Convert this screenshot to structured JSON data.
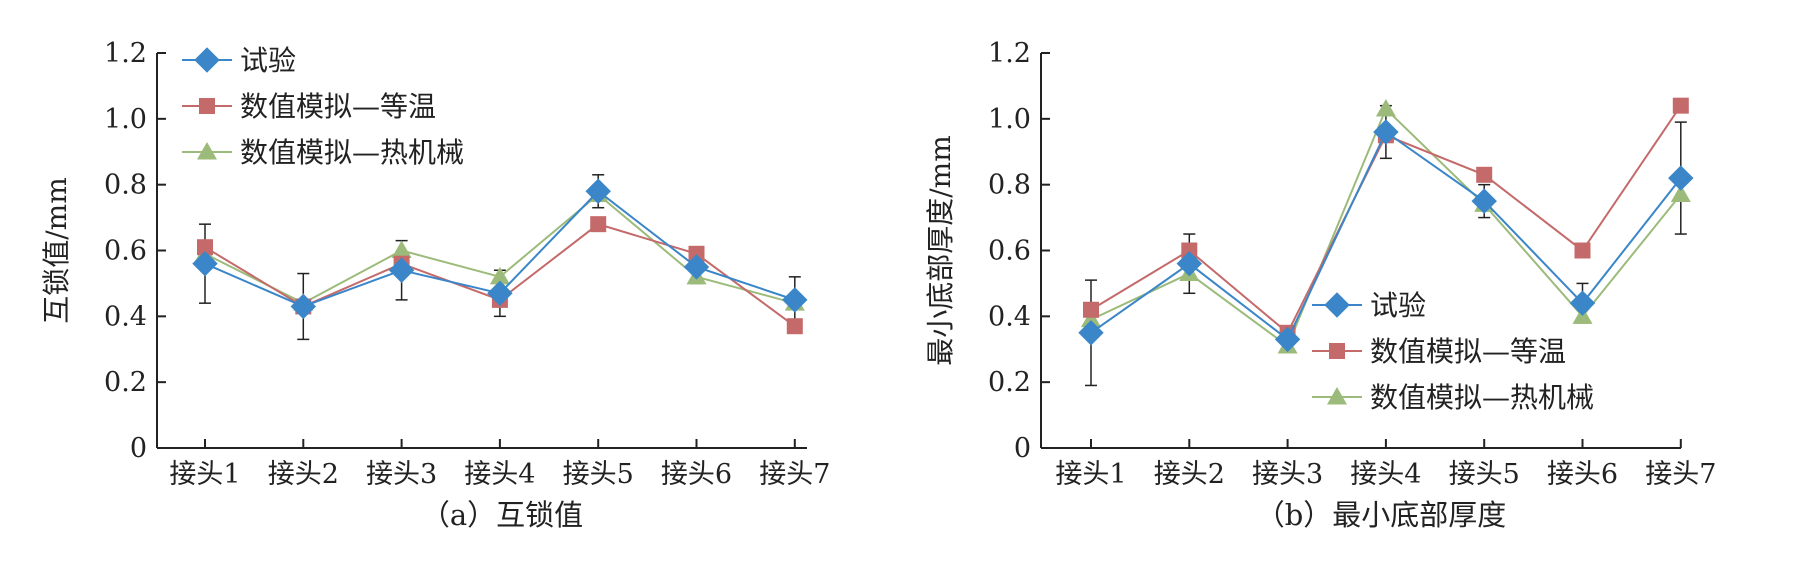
{
  "colors": {
    "series": [
      "#3a86c8",
      "#c46a6a",
      "#9cbb7a"
    ],
    "axis": "#222222",
    "errorbar": "#222222"
  },
  "chart_data": [
    {
      "type": "line",
      "caption": "（a）互锁值",
      "ylabel": "互锁值/mm",
      "xlabel": "",
      "categories": [
        "接头1",
        "接头2",
        "接头3",
        "接头4",
        "接头5",
        "接头6",
        "接头7"
      ],
      "ylim": [
        0,
        1.2
      ],
      "yticks": [
        "0",
        "0.2",
        "0.4",
        "0.6",
        "0.8",
        "1.0",
        "1.2"
      ],
      "grid": false,
      "legend_position": "top-left",
      "series": [
        {
          "name": "试验",
          "marker": "diamond",
          "values": [
            0.56,
            0.43,
            0.54,
            0.47,
            0.78,
            0.55,
            0.45
          ],
          "error": [
            0.12,
            0.1,
            0.09,
            0.07,
            0.05,
            0.05,
            0.07
          ]
        },
        {
          "name": "数值模拟—等温",
          "marker": "square",
          "values": [
            0.61,
            0.43,
            0.56,
            0.45,
            0.68,
            0.59,
            0.37
          ]
        },
        {
          "name": "数值模拟—热机械",
          "marker": "triangle",
          "values": [
            0.59,
            0.44,
            0.6,
            0.52,
            0.77,
            0.52,
            0.44
          ]
        }
      ]
    },
    {
      "type": "line",
      "caption": "（b）最小底部厚度",
      "ylabel": "最小底部厚度/mm",
      "xlabel": "",
      "categories": [
        "接头1",
        "接头2",
        "接头3",
        "接头4",
        "接头5",
        "接头6",
        "接头7"
      ],
      "ylim": [
        0,
        1.2
      ],
      "yticks": [
        "0",
        "0.2",
        "0.4",
        "0.6",
        "0.8",
        "1.0",
        "1.2"
      ],
      "grid": false,
      "legend_position": "bottom-right",
      "series": [
        {
          "name": "试验",
          "marker": "diamond",
          "values": [
            0.35,
            0.56,
            0.33,
            0.96,
            0.75,
            0.44,
            0.82
          ],
          "error": [
            0.16,
            0.09,
            0.04,
            0.08,
            0.05,
            0.06,
            0.17
          ]
        },
        {
          "name": "数值模拟—等温",
          "marker": "square",
          "values": [
            0.42,
            0.6,
            0.35,
            0.95,
            0.83,
            0.6,
            1.04
          ]
        },
        {
          "name": "数值模拟—热机械",
          "marker": "triangle",
          "values": [
            0.39,
            0.53,
            0.31,
            1.03,
            0.74,
            0.4,
            0.77
          ]
        }
      ]
    }
  ]
}
